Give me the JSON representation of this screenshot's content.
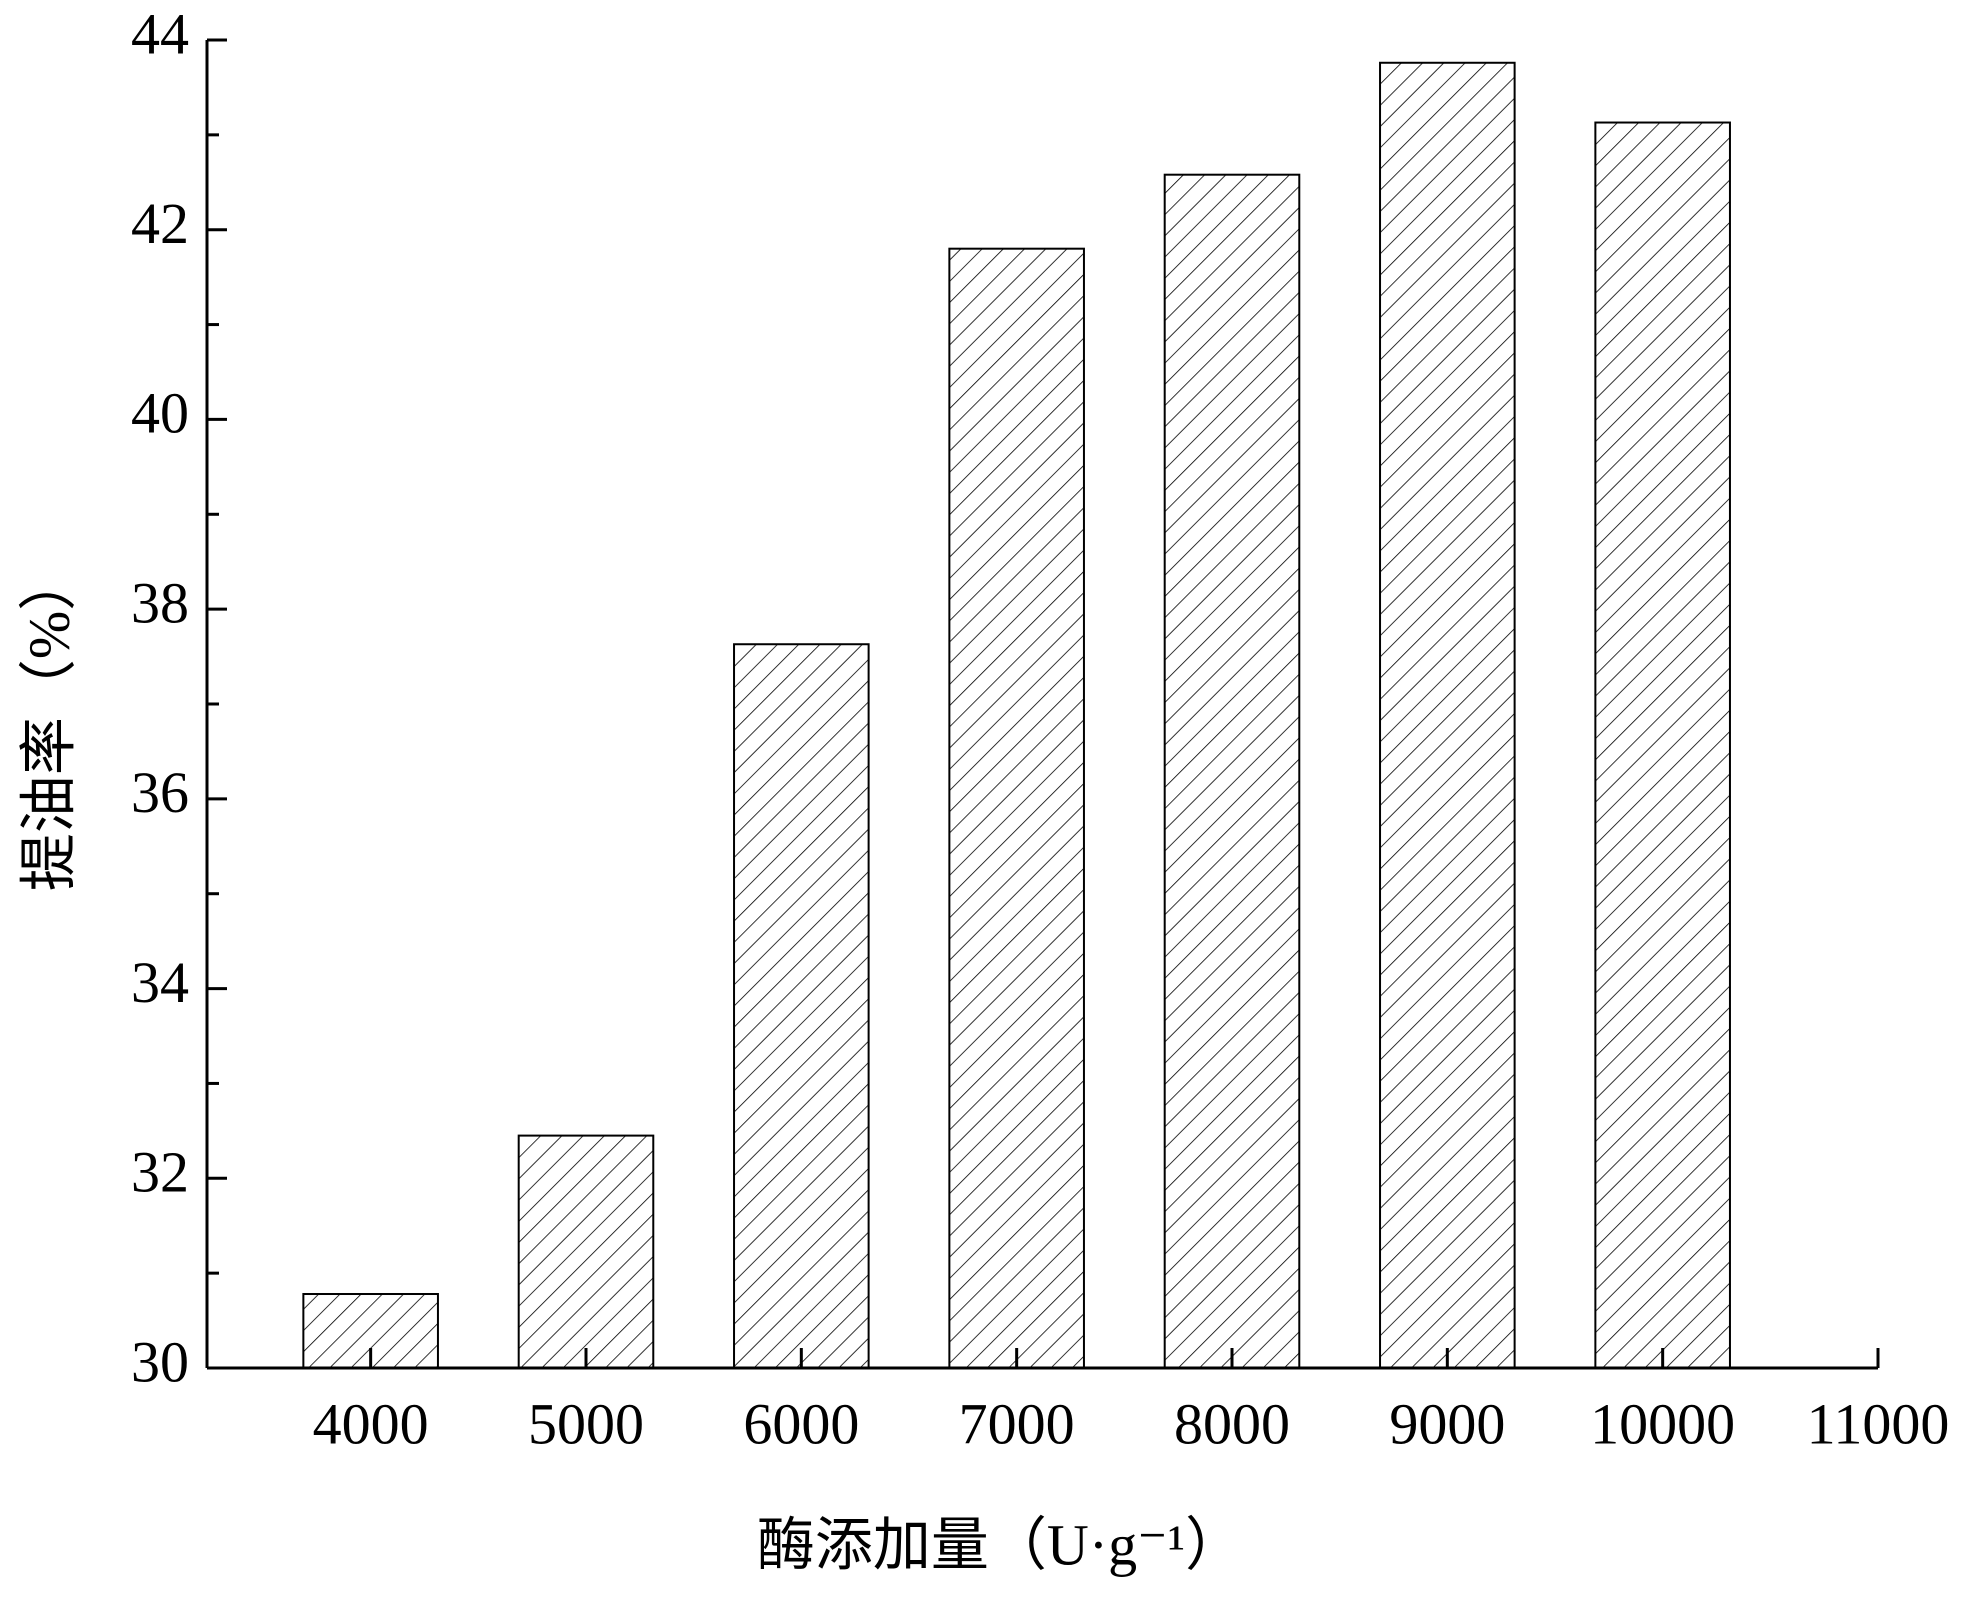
{
  "chart_data": {
    "type": "bar",
    "x_label": "酶添加量（U·g⁻¹）",
    "y_label": "提油率（%）",
    "x": [
      4000,
      5000,
      6000,
      7000,
      8000,
      9000,
      10000
    ],
    "values": [
      30.78,
      32.45,
      37.63,
      41.8,
      42.58,
      43.76,
      43.13
    ],
    "color": "#ffffff",
    "hatch": "/",
    "xlim": [
      3240,
      11000
    ],
    "xticks": [
      4000,
      5000,
      6000,
      7000,
      8000,
      9000,
      10000,
      11000
    ],
    "ylim": [
      30,
      44
    ],
    "yticks": [
      30,
      32,
      34,
      36,
      38,
      40,
      42,
      44
    ],
    "yminorticks": [
      31,
      33,
      35,
      37,
      39,
      41,
      43
    ],
    "grid": false
  }
}
